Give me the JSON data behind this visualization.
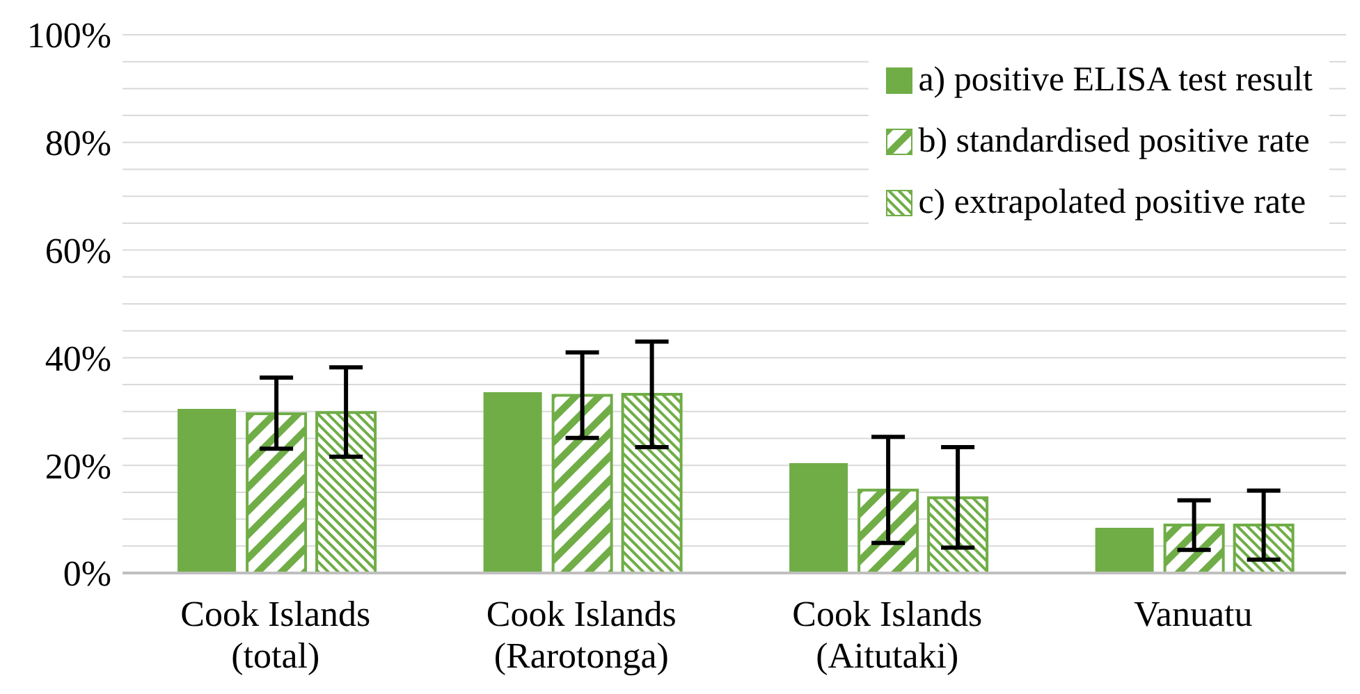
{
  "chart_data": {
    "type": "bar",
    "categories": [
      "Cook Islands (total)",
      "Cook Islands (Rarotonga)",
      "Cook Islands (Aitutaki)",
      "Vanuatu"
    ],
    "series": [
      {
        "name": "a) positive ELISA test result",
        "color": "#70ad47",
        "values": [
          30.5,
          33.6,
          20.4,
          8.4
        ]
      },
      {
        "name": "b) standardised positive rate",
        "color": "#70ad47",
        "values": [
          29.6,
          33.0,
          15.4,
          8.9
        ],
        "errors": [
          [
            23.1,
            36.3
          ],
          [
            25.1,
            41.0
          ],
          [
            5.6,
            25.3
          ],
          [
            4.3,
            13.5
          ]
        ]
      },
      {
        "name": "c) extrapolated positive rate",
        "color": "#70ad47",
        "values": [
          29.8,
          33.2,
          14.0,
          8.9
        ],
        "errors": [
          [
            21.6,
            38.2
          ],
          [
            23.4,
            43.0
          ],
          [
            4.7,
            23.4
          ],
          [
            2.5,
            15.3
          ]
        ]
      }
    ],
    "ylim": [
      0,
      100
    ],
    "yticks": [
      {
        "value": 0,
        "label": "0%"
      },
      {
        "value": 5,
        "label": null
      },
      {
        "value": 10,
        "label": null
      },
      {
        "value": 15,
        "label": null
      },
      {
        "value": 20,
        "label": "20%"
      },
      {
        "value": 25,
        "label": null
      },
      {
        "value": 30,
        "label": null
      },
      {
        "value": 35,
        "label": null
      },
      {
        "value": 40,
        "label": "40%"
      },
      {
        "value": 45,
        "label": null
      },
      {
        "value": 50,
        "label": null
      },
      {
        "value": 55,
        "label": null
      },
      {
        "value": 60,
        "label": "60%"
      },
      {
        "value": 65,
        "label": null
      },
      {
        "value": 70,
        "label": null
      },
      {
        "value": 75,
        "label": null
      },
      {
        "value": 80,
        "label": "80%"
      },
      {
        "value": 85,
        "label": null
      },
      {
        "value": 90,
        "label": null
      },
      {
        "value": 95,
        "label": null
      },
      {
        "value": 100,
        "label": "100%"
      }
    ],
    "grid": "y",
    "legend": "top right"
  }
}
